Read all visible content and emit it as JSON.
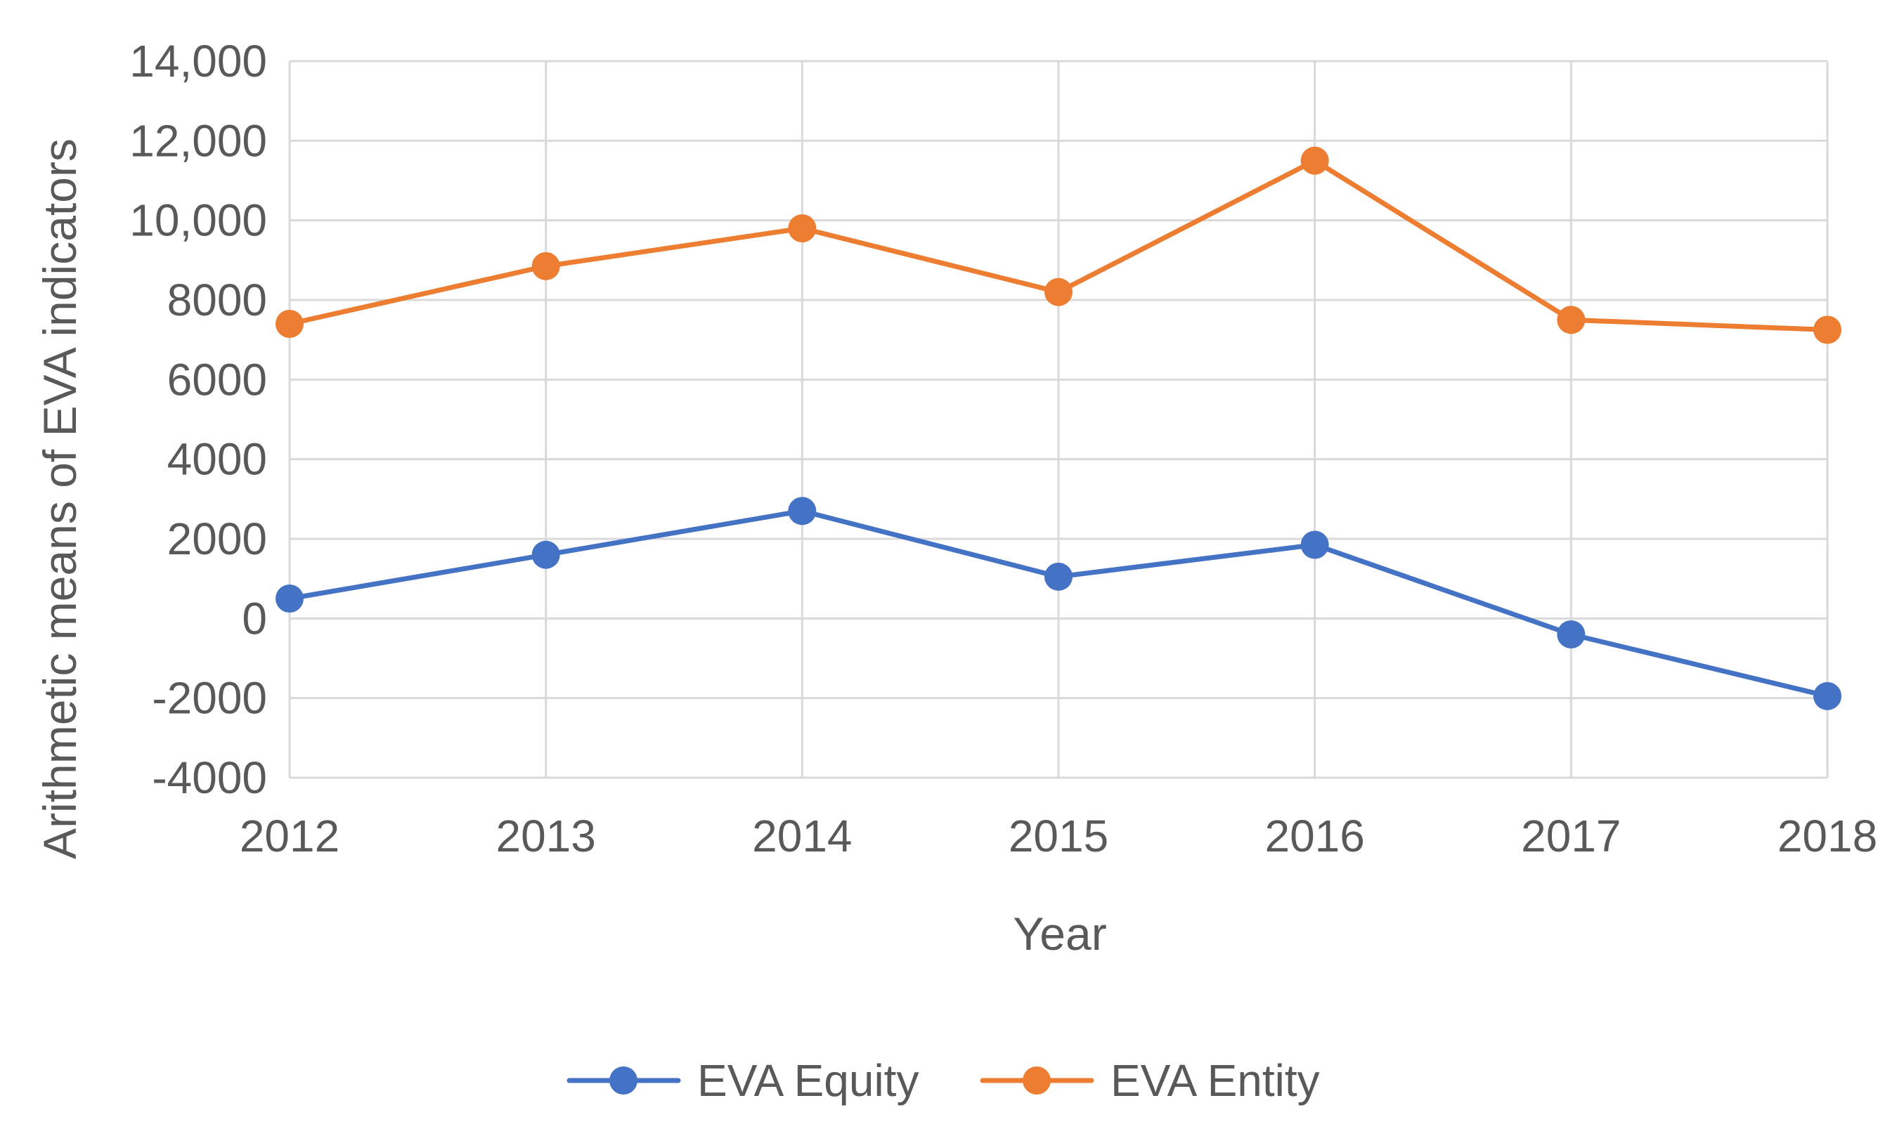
{
  "chart_data": {
    "type": "line",
    "title": "",
    "xlabel": "Year",
    "ylabel": "Arithmetic means of EVA indicators",
    "categories": [
      "2012",
      "2013",
      "2014",
      "2015",
      "2016",
      "2017",
      "2018"
    ],
    "ylim": [
      -4000,
      14000
    ],
    "yticks": [
      -4000,
      -2000,
      0,
      2000,
      4000,
      6000,
      8000,
      10000,
      12000,
      14000
    ],
    "ytick_labels": [
      "-4000",
      "-2000",
      "0",
      "2000",
      "4000",
      "6000",
      "8000",
      "10,000",
      "12,000",
      "14,000"
    ],
    "grid": true,
    "legend_position": "bottom-center",
    "series": [
      {
        "name": "EVA Equity",
        "color": "#4472C4",
        "values": [
          500,
          1600,
          2700,
          1050,
          1850,
          -400,
          -1950
        ]
      },
      {
        "name": "EVA Entity",
        "color": "#ED7D31",
        "values": [
          7400,
          8850,
          9800,
          8200,
          11500,
          7500,
          7250
        ]
      }
    ]
  }
}
